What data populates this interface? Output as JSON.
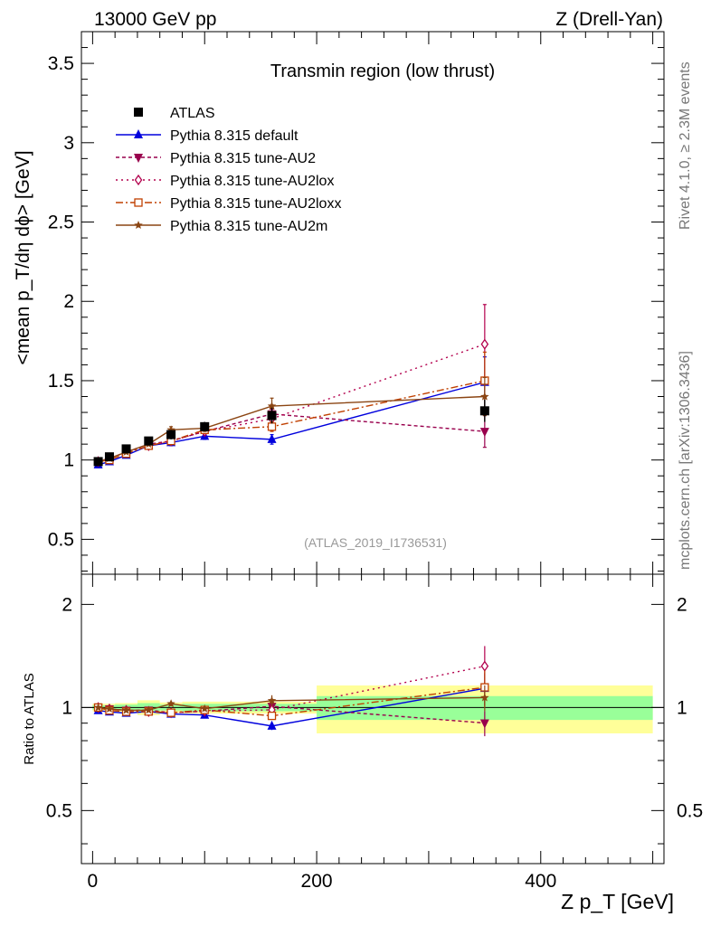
{
  "header": {
    "left": "13000 GeV pp",
    "right": "Z (Drell-Yan)"
  },
  "side_labels": {
    "rivet": "Rivet 4.1.0, ≥ 2.3M events",
    "mcplots": "mcplots.cern.ch [arXiv:1306.3436]"
  },
  "colors": {
    "atlas": "#000000",
    "default": "#0000dd",
    "au2": "#99004d",
    "au2lox": "#b3004d",
    "au2loxx": "#c04000",
    "au2m": "#8b4513",
    "band_inner": "#99ff99",
    "band_outer": "#ffff99"
  },
  "chart_data": {
    "type": "scatter",
    "title": "Transmin region (low thrust)",
    "analysis_label": "(ATLAS_2019_I1736531)",
    "xlabel": "Z p_T [GeV]",
    "ylabel": "<mean p_T/dη dϕ> [GeV]",
    "ratio_ylabel": "Ratio to ATLAS",
    "xlim": [
      -10,
      510
    ],
    "ylim": [
      0.28,
      3.7
    ],
    "ratio_ylim": [
      0.35,
      2.45
    ],
    "x_ticks": [
      0,
      200,
      400
    ],
    "x_tick_labels": [
      "0",
      "200",
      "400"
    ],
    "y_ticks": [
      0.5,
      1,
      1.5,
      2,
      2.5,
      3,
      3.5
    ],
    "y_tick_labels": [
      "0.5",
      "1",
      "1.5",
      "2",
      "2.5",
      "3",
      "3.5"
    ],
    "ratio_ticks": [
      0.5,
      1,
      2
    ],
    "ratio_tick_labels": [
      "0.5",
      "1",
      "2"
    ],
    "x": [
      5,
      15,
      30,
      50,
      70,
      100,
      160,
      350
    ],
    "data": {
      "name": "ATLAS",
      "values": [
        0.99,
        1.02,
        1.07,
        1.12,
        1.16,
        1.21,
        1.28,
        1.31
      ],
      "errors": [
        0.02,
        0.02,
        0.02,
        0.02,
        0.03,
        0.03,
        0.05,
        0.07
      ]
    },
    "bands": {
      "inner": [
        [
          0,
          0.015
        ],
        [
          20,
          0.02
        ],
        [
          40,
          0.03
        ],
        [
          60,
          0.02
        ],
        [
          80,
          0.025
        ],
        [
          120,
          0.025
        ],
        [
          200,
          0.08
        ],
        [
          500,
          0.08
        ]
      ],
      "outer": [
        [
          0,
          0.025
        ],
        [
          20,
          0.03
        ],
        [
          40,
          0.05
        ],
        [
          60,
          0.035
        ],
        [
          80,
          0.04
        ],
        [
          120,
          0.04
        ],
        [
          200,
          0.16
        ],
        [
          500,
          0.16
        ]
      ]
    },
    "series": [
      {
        "name": "Pythia 8.315 default",
        "values": [
          0.97,
          0.99,
          1.03,
          1.09,
          1.11,
          1.15,
          1.13,
          1.49
        ],
        "errors": [
          0.01,
          0.01,
          0.01,
          0.01,
          0.02,
          0.02,
          0.03,
          0.16
        ],
        "marker": "triangle-up",
        "dash": ""
      },
      {
        "name": "Pythia 8.315 tune-AU2",
        "values": [
          0.99,
          1.01,
          1.05,
          1.1,
          1.12,
          1.18,
          1.29,
          1.18
        ],
        "errors": [
          0.01,
          0.01,
          0.01,
          0.01,
          0.02,
          0.02,
          0.03,
          0.1
        ],
        "marker": "triangle-down",
        "dash": "4,3"
      },
      {
        "name": "Pythia 8.315 tune-AU2lox",
        "values": [
          0.99,
          1.01,
          1.05,
          1.09,
          1.12,
          1.18,
          1.26,
          1.73
        ],
        "errors": [
          0.01,
          0.01,
          0.01,
          0.01,
          0.02,
          0.02,
          0.03,
          0.25
        ],
        "marker": "diamond-open",
        "dash": "2,4"
      },
      {
        "name": "Pythia 8.315 tune-AU2loxx",
        "values": [
          0.99,
          1.0,
          1.04,
          1.09,
          1.12,
          1.19,
          1.21,
          1.5
        ],
        "errors": [
          0.01,
          0.01,
          0.01,
          0.01,
          0.02,
          0.02,
          0.03,
          0.18
        ],
        "marker": "square-open",
        "dash": "8,3,2,3"
      },
      {
        "name": "Pythia 8.315 tune-AU2m",
        "values": [
          0.99,
          1.01,
          1.05,
          1.1,
          1.19,
          1.2,
          1.34,
          1.4
        ],
        "errors": [
          0.01,
          0.01,
          0.01,
          0.01,
          0.02,
          0.02,
          0.05,
          0.12
        ],
        "marker": "star",
        "dash": ""
      }
    ]
  }
}
